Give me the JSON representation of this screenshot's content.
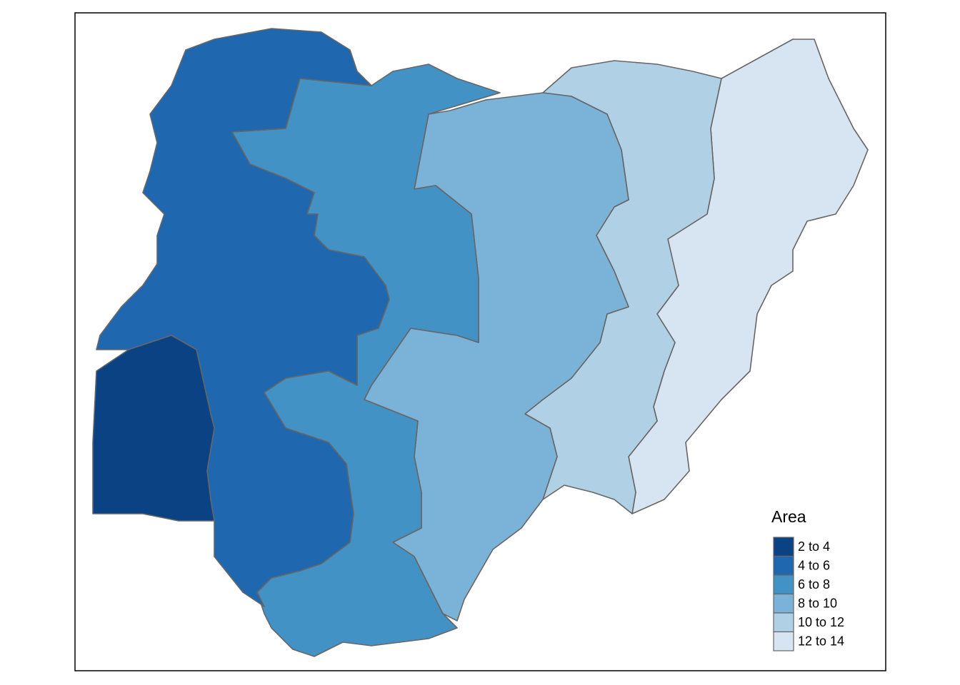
{
  "legend": {
    "title": "Area",
    "items": [
      {
        "label": "2 to 4",
        "color": "#0b4284"
      },
      {
        "label": "4 to 6",
        "color": "#1f68b0"
      },
      {
        "label": "6 to 8",
        "color": "#4292c6"
      },
      {
        "label": "8 to 10",
        "color": "#7bb2d8"
      },
      {
        "label": "10 to 12",
        "color": "#b0d0e6"
      },
      {
        "label": "12 to 14",
        "color": "#d7e5f3"
      }
    ]
  }
}
